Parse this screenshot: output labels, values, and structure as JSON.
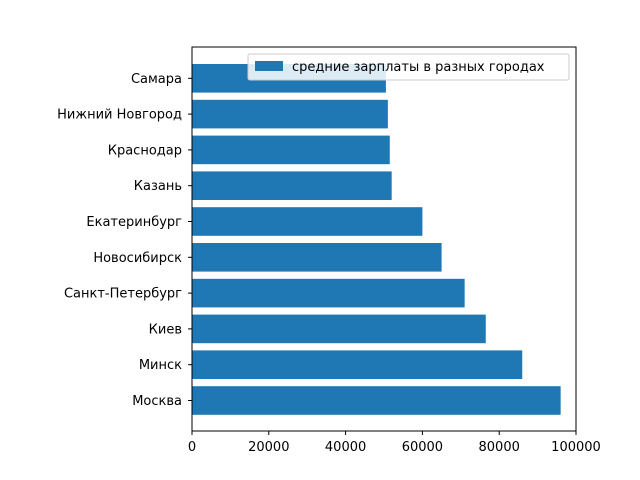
{
  "chart_data": {
    "type": "bar",
    "orientation": "horizontal",
    "categories": [
      "Москва",
      "Минск",
      "Киев",
      "Санкт-Петербург",
      "Новосибирск",
      "Екатеринбург",
      "Казань",
      "Краснодар",
      "Нижний Новгород",
      "Самара"
    ],
    "series": [
      {
        "name": "средние зарплаты в разных городах",
        "values": [
          96000,
          86000,
          76500,
          71000,
          65000,
          60000,
          52000,
          51500,
          51000,
          50500
        ],
        "color": "#1f77b4"
      }
    ],
    "xlim": [
      0,
      100000
    ],
    "xticks": [
      0,
      20000,
      40000,
      60000,
      80000,
      100000
    ],
    "title": "",
    "xlabel": "",
    "ylabel": "",
    "grid": false,
    "legend": "top-right"
  }
}
